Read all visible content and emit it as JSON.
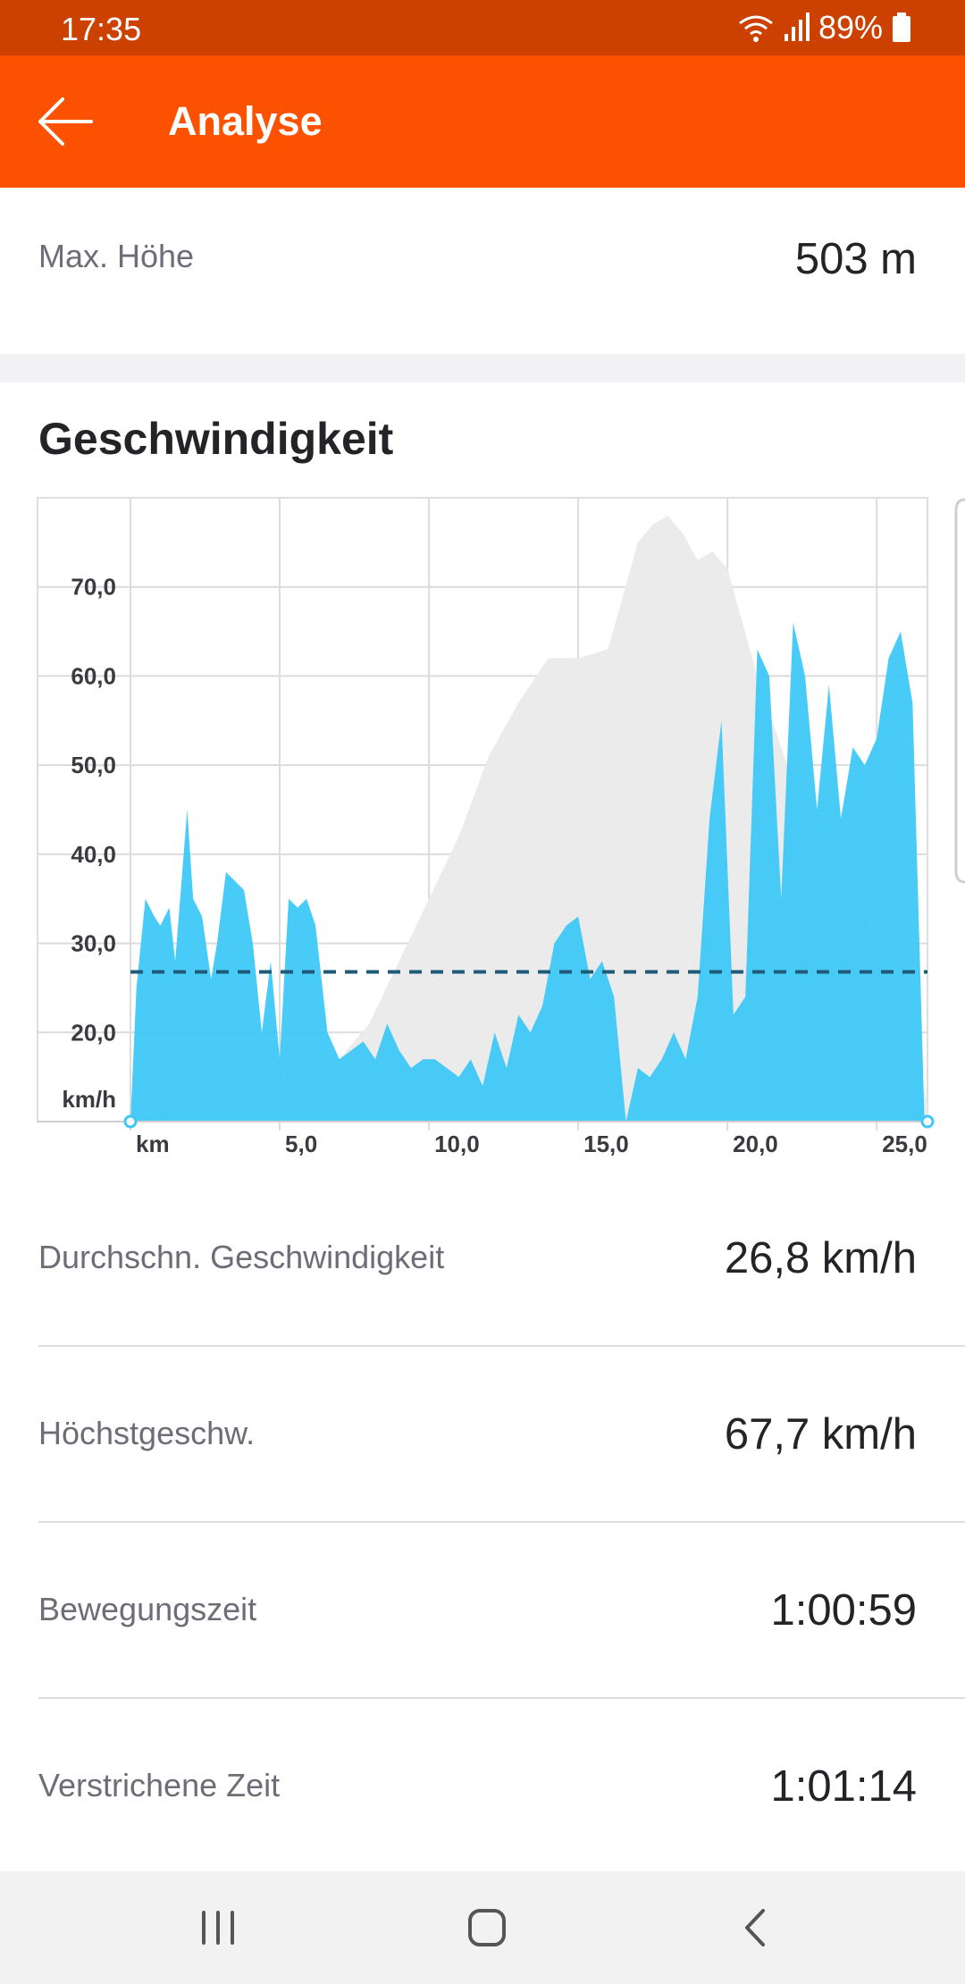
{
  "status_bar": {
    "time": "17:35",
    "battery": "89%"
  },
  "app_bar": {
    "title": "Analyse"
  },
  "top_stat": {
    "label": "Max. Höhe",
    "value": "503 m"
  },
  "section": {
    "title": "Geschwindigkeit"
  },
  "stats": [
    {
      "label": "Durchschn. Geschwindigkeit",
      "value": "26,8 km/h"
    },
    {
      "label": "Höchstgeschw.",
      "value": "67,7 km/h"
    },
    {
      "label": "Bewegungszeit",
      "value": "1:00:59"
    },
    {
      "label": "Verstrichene Zeit",
      "value": "1:01:14"
    }
  ],
  "colors": {
    "accent": "#fc5200",
    "status": "#cc4100",
    "speed": "#3fc8f7",
    "elevation": "#ebebeb",
    "average": "#1f5a78"
  },
  "chart_data": {
    "type": "area",
    "x_unit_label": "km",
    "y_unit_label": "km/h",
    "xlim": [
      0,
      26.7
    ],
    "ylim": [
      10,
      80
    ],
    "x_ticks": [
      5,
      10,
      15,
      20,
      25
    ],
    "x_tick_labels": [
      "5,0",
      "10,0",
      "15,0",
      "20,0",
      "25,0"
    ],
    "y_ticks": [
      20,
      30,
      40,
      50,
      60,
      70
    ],
    "y_tick_labels": [
      "20,0",
      "30,0",
      "40,0",
      "50,0",
      "60,0",
      "70,0"
    ],
    "average_speed": 26.8,
    "grid": true,
    "speed": {
      "x": [
        0,
        0.2,
        0.5,
        0.8,
        1.0,
        1.3,
        1.5,
        1.9,
        2.1,
        2.4,
        2.7,
        2.9,
        3.2,
        3.5,
        3.8,
        4.1,
        4.4,
        4.7,
        5.0,
        5.3,
        5.6,
        5.9,
        6.2,
        6.6,
        7.0,
        7.4,
        7.8,
        8.2,
        8.6,
        9.0,
        9.4,
        9.8,
        10.2,
        10.6,
        11.0,
        11.4,
        11.8,
        12.2,
        12.6,
        13.0,
        13.4,
        13.8,
        14.2,
        14.6,
        15.0,
        15.4,
        15.8,
        16.2,
        16.6,
        17.0,
        17.4,
        17.8,
        18.2,
        18.6,
        19.0,
        19.4,
        19.8,
        20.2,
        20.6,
        21.0,
        21.4,
        21.8,
        22.2,
        22.6,
        23.0,
        23.4,
        23.8,
        24.2,
        24.6,
        25.0,
        25.4,
        25.8,
        26.2,
        26.6
      ],
      "y": [
        10,
        25,
        35,
        33,
        32,
        34,
        28,
        45,
        35,
        33,
        26,
        30,
        38,
        37,
        36,
        30,
        20,
        28,
        17,
        35,
        34,
        35,
        32,
        20,
        17,
        18,
        19,
        17,
        21,
        18,
        16,
        17,
        17,
        16,
        15,
        17,
        14,
        20,
        16,
        22,
        20,
        23,
        30,
        32,
        33,
        26,
        28,
        24,
        10,
        16,
        15,
        17,
        20,
        17,
        24,
        44,
        55,
        22,
        24,
        63,
        60,
        35,
        66,
        60,
        45,
        59,
        44,
        52,
        50,
        53,
        62,
        65,
        57,
        10
      ]
    },
    "elevation": {
      "x": [
        0,
        1.0,
        2.0,
        3.0,
        4.0,
        5.0,
        6.0,
        7.0,
        8.0,
        9.0,
        10.0,
        11.0,
        12.0,
        13.0,
        14.0,
        15.0,
        16.0,
        17.0,
        17.5,
        18.0,
        18.5,
        19.0,
        19.5,
        20.0,
        21.0,
        22.0,
        23.0,
        24.0,
        25.0,
        26.0,
        26.7
      ],
      "y": [
        10,
        11,
        12,
        12,
        13,
        14,
        15,
        17,
        21,
        28,
        35,
        42,
        51,
        57,
        62,
        62,
        63,
        75,
        77,
        78,
        76,
        73,
        74,
        72,
        60,
        50,
        45,
        39,
        30,
        22,
        12
      ],
      "rel_scale": true
    }
  }
}
